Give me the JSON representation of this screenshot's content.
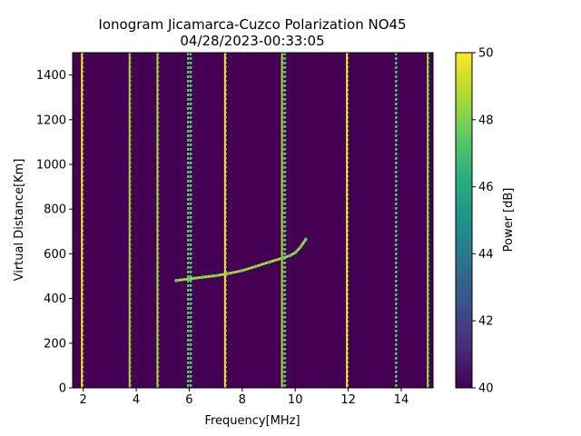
{
  "chart_data": {
    "type": "heatmap",
    "title_line1": "Ionogram Jicamarca-Cuzco Polarization NO45",
    "title_line2": "04/28/2023-00:33:05",
    "xlabel": "Frequency[MHz]",
    "ylabel": "Virtual Distance[Km]",
    "xlim": [
      1.6,
      15.2
    ],
    "ylim": [
      0,
      1500
    ],
    "xticks": [
      2,
      4,
      6,
      8,
      10,
      12,
      14
    ],
    "yticks": [
      0,
      200,
      400,
      600,
      800,
      1000,
      1200,
      1400
    ],
    "colorbar": {
      "label": "Power [dB]",
      "range": [
        40,
        50
      ],
      "ticks": [
        40,
        42,
        44,
        46,
        48,
        50
      ],
      "colormap": "viridis"
    },
    "background_color": "#440154",
    "interference_lines": [
      {
        "freq": 1.95,
        "intensity": 1.0
      },
      {
        "freq": 3.75,
        "intensity": 0.9
      },
      {
        "freq": 4.8,
        "intensity": 0.9
      },
      {
        "freq": 5.95,
        "intensity": 0.7
      },
      {
        "freq": 6.05,
        "intensity": 0.8
      },
      {
        "freq": 7.35,
        "intensity": 1.0
      },
      {
        "freq": 9.5,
        "intensity": 0.85
      },
      {
        "freq": 9.6,
        "intensity": 0.7
      },
      {
        "freq": 11.95,
        "intensity": 1.0
      },
      {
        "freq": 13.8,
        "intensity": 0.8
      },
      {
        "freq": 15.0,
        "intensity": 0.85
      }
    ],
    "trace": [
      {
        "freq": 5.5,
        "dist": 480
      },
      {
        "freq": 6.0,
        "dist": 488
      },
      {
        "freq": 6.5,
        "dist": 495
      },
      {
        "freq": 7.0,
        "dist": 502
      },
      {
        "freq": 7.5,
        "dist": 512
      },
      {
        "freq": 8.0,
        "dist": 525
      },
      {
        "freq": 8.5,
        "dist": 543
      },
      {
        "freq": 9.0,
        "dist": 562
      },
      {
        "freq": 9.5,
        "dist": 580
      },
      {
        "freq": 9.8,
        "dist": 592
      },
      {
        "freq": 10.0,
        "dist": 605
      },
      {
        "freq": 10.2,
        "dist": 630
      },
      {
        "freq": 10.4,
        "dist": 665
      }
    ]
  }
}
